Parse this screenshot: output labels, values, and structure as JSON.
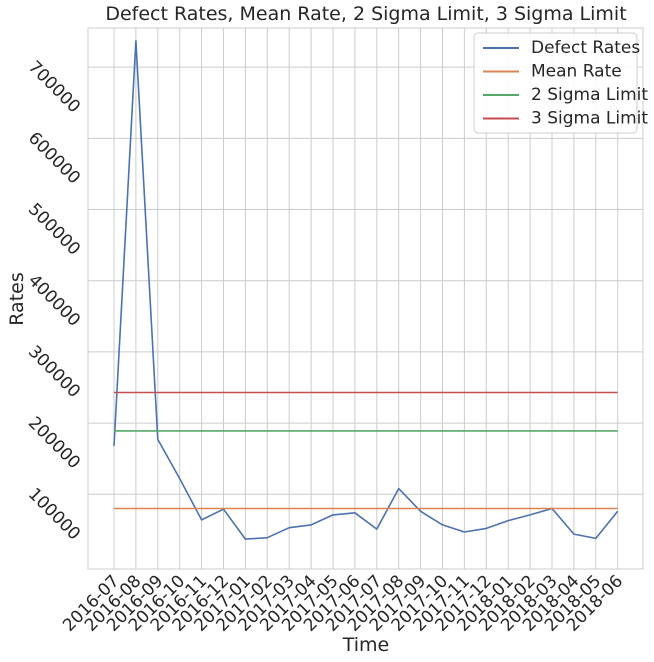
{
  "chart_data": {
    "type": "line",
    "title": "Defect Rates, Mean Rate, 2 Sigma Limit, 3 Sigma Limit",
    "xlabel": "Time",
    "ylabel": "Rates",
    "categories": [
      "2016-07",
      "2016-08",
      "2016-09",
      "2016-10",
      "2016-11",
      "2016-12",
      "2017-01",
      "2017-02",
      "2017-03",
      "2017-04",
      "2017-05",
      "2017-06",
      "2017-07",
      "2017-08",
      "2017-09",
      "2017-10",
      "2017-11",
      "2017-12",
      "2018-01",
      "2018-02",
      "2018-03",
      "2018-04",
      "2018-05",
      "2018-06"
    ],
    "yticks": [
      100000,
      200000,
      300000,
      400000,
      500000,
      600000,
      700000
    ],
    "ytick_labels": [
      "100000",
      "200000",
      "300000",
      "400000",
      "500000",
      "600000",
      "700000"
    ],
    "ylim": [
      -5000,
      755000
    ],
    "grid": true,
    "legend_position": "top-right",
    "series": [
      {
        "name": "Defect Rates",
        "color": "#4c72b0",
        "values": [
          168000,
          737000,
          177000,
          122000,
          64000,
          79000,
          37000,
          39000,
          53000,
          57000,
          71000,
          74000,
          51000,
          108000,
          76000,
          57000,
          47000,
          52000,
          63000,
          71000,
          80000,
          44000,
          38000,
          76000
        ]
      },
      {
        "name": "Mean Rate",
        "color": "#dd8452",
        "values": [
          80000,
          80000,
          80000,
          80000,
          80000,
          80000,
          80000,
          80000,
          80000,
          80000,
          80000,
          80000,
          80000,
          80000,
          80000,
          80000,
          80000,
          80000,
          80000,
          80000,
          80000,
          80000,
          80000,
          80000
        ]
      },
      {
        "name": "2 Sigma Limit",
        "color": "#55a868",
        "values": [
          189000,
          189000,
          189000,
          189000,
          189000,
          189000,
          189000,
          189000,
          189000,
          189000,
          189000,
          189000,
          189000,
          189000,
          189000,
          189000,
          189000,
          189000,
          189000,
          189000,
          189000,
          189000,
          189000,
          189000
        ]
      },
      {
        "name": "3 Sigma Limit",
        "color": "#c44e52",
        "values": [
          243000,
          243000,
          243000,
          243000,
          243000,
          243000,
          243000,
          243000,
          243000,
          243000,
          243000,
          243000,
          243000,
          243000,
          243000,
          243000,
          243000,
          243000,
          243000,
          243000,
          243000,
          243000,
          243000,
          243000
        ]
      }
    ]
  }
}
